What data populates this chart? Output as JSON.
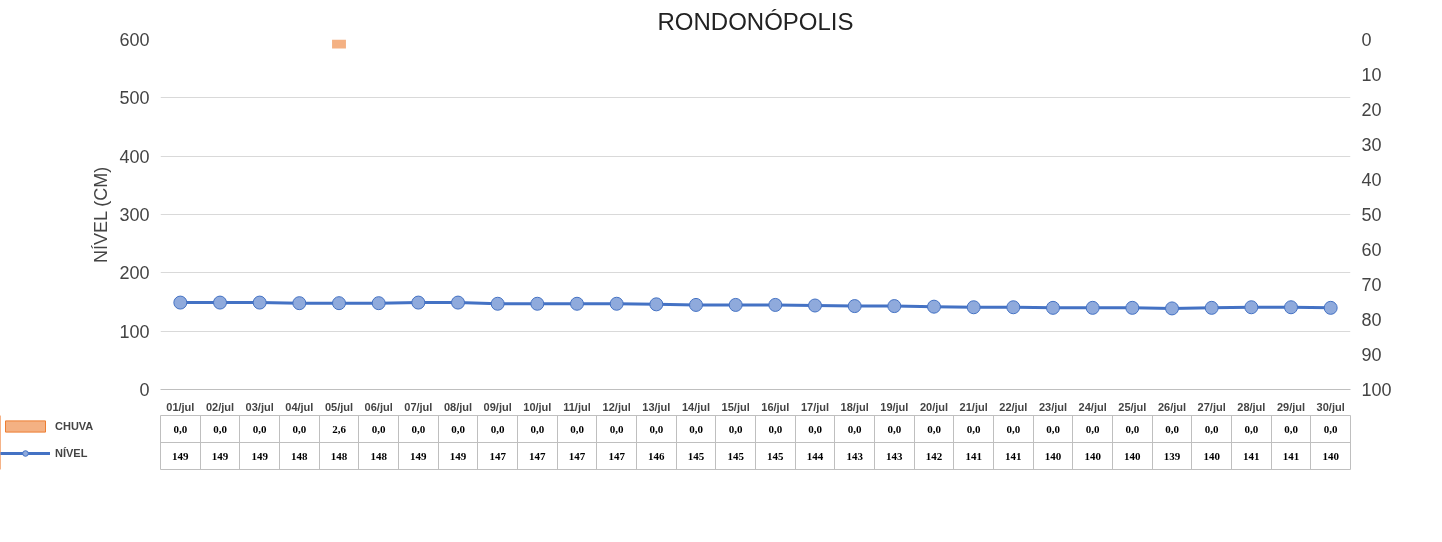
{
  "chart_data": {
    "type": "line",
    "title": "RONDONÓPOLIS",
    "ylabel": "NÍVEL (CM)",
    "categories": [
      "01/jul",
      "02/jul",
      "03/jul",
      "04/jul",
      "05/jul",
      "06/jul",
      "07/jul",
      "08/jul",
      "09/jul",
      "10/jul",
      "11/jul",
      "12/jul",
      "13/jul",
      "14/jul",
      "15/jul",
      "16/jul",
      "17/jul",
      "18/jul",
      "19/jul",
      "20/jul",
      "21/jul",
      "22/jul",
      "23/jul",
      "24/jul",
      "25/jul",
      "26/jul",
      "27/jul",
      "28/jul",
      "29/jul",
      "30/jul"
    ],
    "series": [
      {
        "name": "CHUVA",
        "type": "bar",
        "axis": "y2",
        "color": "#f4b183",
        "values": [
          0,
          0,
          0,
          0,
          2.6,
          0,
          0,
          0,
          0,
          0,
          0,
          0,
          0,
          0,
          0,
          0,
          0,
          0,
          0,
          0,
          0,
          0,
          0,
          0,
          0,
          0,
          0,
          0,
          0,
          0
        ],
        "value_labels": [
          "0,0",
          "0,0",
          "0,0",
          "0,0",
          "2,6",
          "0,0",
          "0,0",
          "0,0",
          "0,0",
          "0,0",
          "0,0",
          "0,0",
          "0,0",
          "0,0",
          "0,0",
          "0,0",
          "0,0",
          "0,0",
          "0,0",
          "0,0",
          "0,0",
          "0,0",
          "0,0",
          "0,0",
          "0,0",
          "0,0",
          "0,0",
          "0,0",
          "0,0",
          "0,0"
        ]
      },
      {
        "name": "NÍVEL",
        "color": "#4472c4",
        "values": [
          149,
          149,
          149,
          148,
          148,
          148,
          149,
          149,
          147,
          147,
          147,
          147,
          146,
          145,
          145,
          145,
          144,
          143,
          143,
          142,
          141,
          141,
          140,
          140,
          140,
          139,
          140,
          141,
          141,
          140
        ],
        "value_labels": [
          "149",
          "149",
          "149",
          "148",
          "148",
          "148",
          "149",
          "149",
          "147",
          "147",
          "147",
          "147",
          "146",
          "145",
          "145",
          "145",
          "144",
          "143",
          "143",
          "142",
          "141",
          "141",
          "140",
          "140",
          "140",
          "139",
          "140",
          "141",
          "141",
          "140"
        ]
      }
    ],
    "ylim": [
      0,
      600
    ],
    "yticks": [
      0,
      100,
      200,
      300,
      400,
      500,
      600
    ],
    "y2lim": [
      100,
      0
    ],
    "y2ticks": [
      0,
      10,
      20,
      30,
      40,
      50,
      60,
      70,
      80,
      90,
      100
    ],
    "grid": "y",
    "marker": "circle",
    "legend": "bottom"
  }
}
